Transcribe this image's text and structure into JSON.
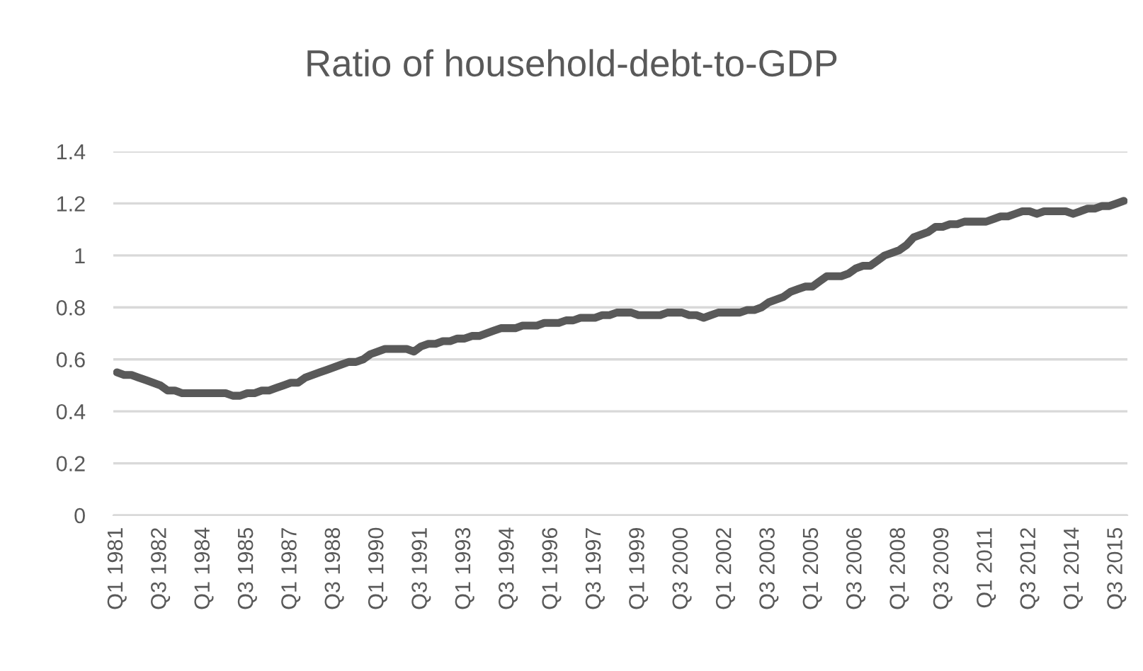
{
  "chart_data": {
    "type": "line",
    "title": "Ratio of household-debt-to-GDP",
    "categories": [
      "Q1 1981",
      null,
      null,
      null,
      null,
      null,
      "Q3 1982",
      null,
      null,
      null,
      null,
      null,
      "Q1 1984",
      null,
      null,
      null,
      null,
      null,
      "Q3 1985",
      null,
      null,
      null,
      null,
      null,
      "Q1 1987",
      null,
      null,
      null,
      null,
      null,
      "Q3 1988",
      null,
      null,
      null,
      null,
      null,
      "Q1 1990",
      null,
      null,
      null,
      null,
      null,
      "Q3 1991",
      null,
      null,
      null,
      null,
      null,
      "Q1 1993",
      null,
      null,
      null,
      null,
      null,
      "Q3 1994",
      null,
      null,
      null,
      null,
      null,
      "Q1 1996",
      null,
      null,
      null,
      null,
      null,
      "Q3 1997",
      null,
      null,
      null,
      null,
      null,
      "Q1 1999",
      null,
      null,
      null,
      null,
      null,
      "Q3 2000",
      null,
      null,
      null,
      null,
      null,
      "Q1 2002",
      null,
      null,
      null,
      null,
      null,
      "Q3 2003",
      null,
      null,
      null,
      null,
      null,
      "Q1 2005",
      null,
      null,
      null,
      null,
      null,
      "Q3 2006",
      null,
      null,
      null,
      null,
      null,
      "Q1 2008",
      null,
      null,
      null,
      null,
      null,
      "Q3 2009",
      null,
      null,
      null,
      null,
      null,
      "Q1 2011",
      null,
      null,
      null,
      null,
      null,
      "Q3 2012",
      null,
      null,
      null,
      null,
      null,
      "Q1 2014",
      null,
      null,
      null,
      null,
      null,
      "Q3 2015",
      null
    ],
    "series": [
      {
        "color": "#595959",
        "values": [
          0.55,
          0.54,
          0.54,
          0.53,
          0.52,
          0.51,
          0.5,
          0.48,
          0.48,
          0.47,
          0.47,
          0.47,
          0.47,
          0.47,
          0.47,
          0.47,
          0.46,
          0.46,
          0.47,
          0.47,
          0.48,
          0.48,
          0.49,
          0.5,
          0.51,
          0.51,
          0.53,
          0.54,
          0.55,
          0.56,
          0.57,
          0.58,
          0.59,
          0.59,
          0.6,
          0.62,
          0.63,
          0.64,
          0.64,
          0.64,
          0.64,
          0.63,
          0.65,
          0.66,
          0.66,
          0.67,
          0.67,
          0.68,
          0.68,
          0.69,
          0.69,
          0.7,
          0.71,
          0.72,
          0.72,
          0.72,
          0.73,
          0.73,
          0.73,
          0.74,
          0.74,
          0.74,
          0.75,
          0.75,
          0.76,
          0.76,
          0.76,
          0.77,
          0.77,
          0.78,
          0.78,
          0.78,
          0.77,
          0.77,
          0.77,
          0.77,
          0.78,
          0.78,
          0.78,
          0.77,
          0.77,
          0.76,
          0.77,
          0.78,
          0.78,
          0.78,
          0.78,
          0.79,
          0.79,
          0.8,
          0.82,
          0.83,
          0.84,
          0.86,
          0.87,
          0.88,
          0.88,
          0.9,
          0.92,
          0.92,
          0.92,
          0.93,
          0.95,
          0.96,
          0.96,
          0.98,
          1.0,
          1.01,
          1.02,
          1.04,
          1.07,
          1.08,
          1.09,
          1.11,
          1.11,
          1.12,
          1.12,
          1.13,
          1.13,
          1.13,
          1.13,
          1.14,
          1.15,
          1.15,
          1.16,
          1.17,
          1.17,
          1.16,
          1.17,
          1.17,
          1.17,
          1.17,
          1.16,
          1.17,
          1.18,
          1.18,
          1.19,
          1.19,
          1.2,
          1.21
        ]
      }
    ],
    "ylim": [
      0,
      1.4
    ],
    "yticks": [
      0,
      0.2,
      0.4,
      0.6,
      0.8,
      1,
      1.2,
      1.4
    ],
    "grid": "y"
  }
}
